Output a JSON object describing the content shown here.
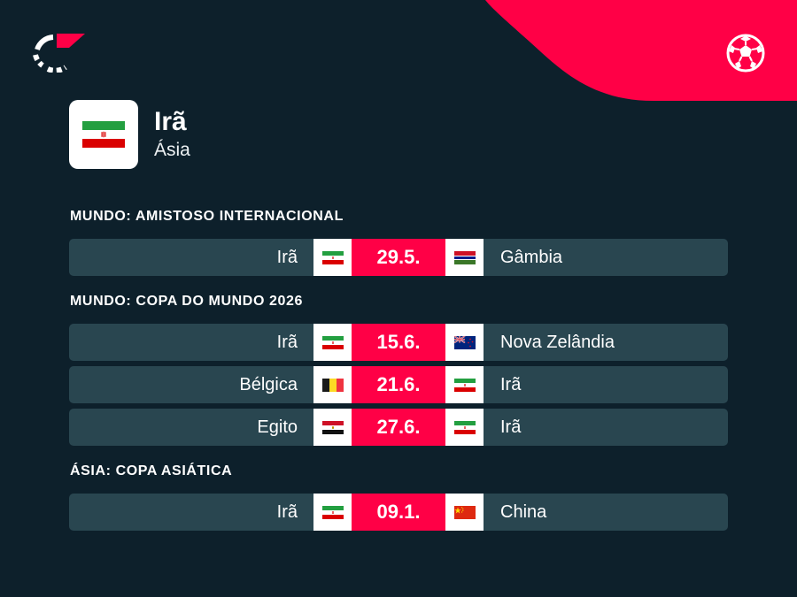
{
  "team": {
    "name": "Irã",
    "region": "Ásia"
  },
  "icons": {
    "logo": "brand-logo-icon",
    "ball": "football-icon"
  },
  "colors": {
    "background": "#0d202b",
    "accent": "#ff0046",
    "row": "#294650"
  },
  "sections": [
    {
      "title": "MUNDO: AMISTOSO INTERNACIONAL",
      "matches": [
        {
          "home": "Irã",
          "home_flag": "iran",
          "date": "29.5.",
          "away": "Gâmbia",
          "away_flag": "gambia"
        }
      ]
    },
    {
      "title": "MUNDO: COPA DO MUNDO 2026",
      "matches": [
        {
          "home": "Irã",
          "home_flag": "iran",
          "date": "15.6.",
          "away": "Nova Zelândia",
          "away_flag": "new-zealand"
        },
        {
          "home": "Bélgica",
          "home_flag": "belgium",
          "date": "21.6.",
          "away": "Irã",
          "away_flag": "iran"
        },
        {
          "home": "Egito",
          "home_flag": "egypt",
          "date": "27.6.",
          "away": "Irã",
          "away_flag": "iran"
        }
      ]
    },
    {
      "title": "ÁSIA: COPA ASIÁTICA",
      "matches": [
        {
          "home": "Irã",
          "home_flag": "iran",
          "date": "09.1.",
          "away": "China",
          "away_flag": "china"
        }
      ]
    }
  ]
}
